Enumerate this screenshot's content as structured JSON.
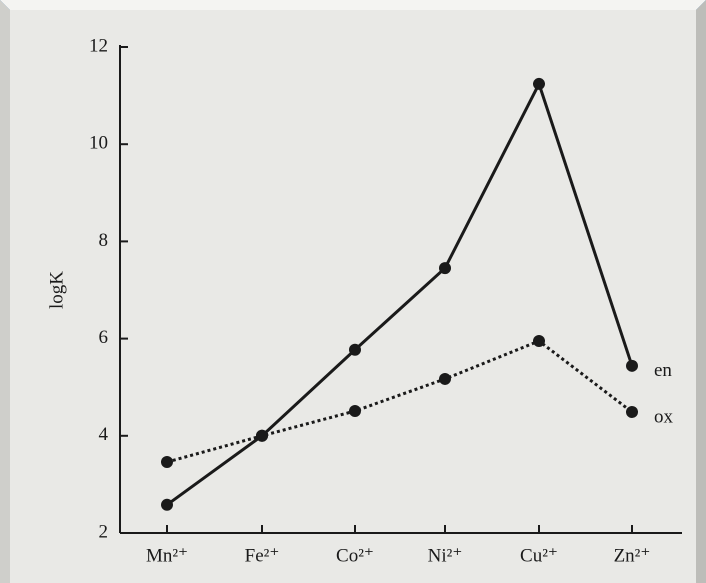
{
  "chart_data": {
    "type": "line",
    "ylabel": "logK",
    "categories": [
      "Mn²⁺",
      "Fe²⁺",
      "Co²⁺",
      "Ni²⁺",
      "Cu²⁺",
      "Zn²⁺"
    ],
    "series": [
      {
        "name": "en",
        "color": "#1a1a1a",
        "line_style": "solid",
        "values": [
          2.58,
          4.0,
          5.77,
          7.45,
          11.24,
          5.44
        ]
      },
      {
        "name": "ox",
        "color": "#1a1a1a",
        "line_style": "dotted",
        "values": [
          3.46,
          4.0,
          4.51,
          5.17,
          5.95,
          4.49
        ]
      }
    ],
    "ylim": [
      2,
      12
    ],
    "yticks": [
      2,
      4,
      6,
      8,
      10,
      12
    ],
    "grid": false
  }
}
